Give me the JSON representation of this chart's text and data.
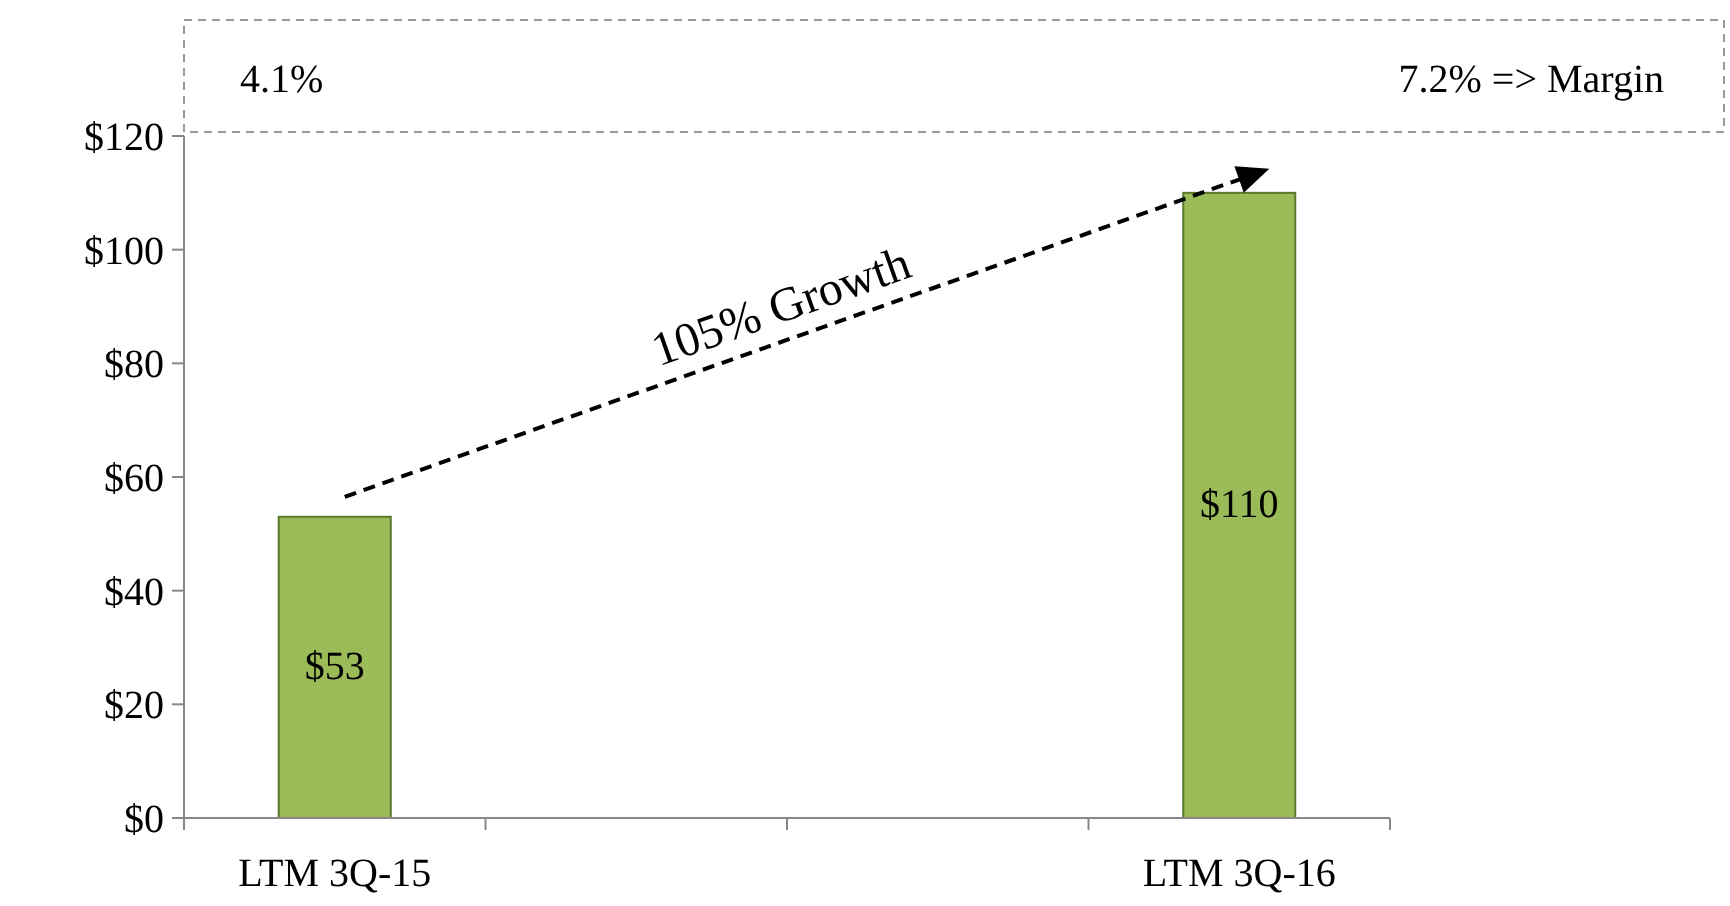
{
  "chart_data": {
    "type": "bar",
    "categories": [
      "LTM 3Q-15",
      null,
      null,
      "LTM 3Q-16"
    ],
    "values": [
      53,
      null,
      null,
      110
    ],
    "value_labels": [
      "$53",
      null,
      null,
      "$110"
    ],
    "color": "#9bbb59",
    "ylim": [
      0,
      120
    ],
    "yticks": [
      {
        "value": 0,
        "label": "$0"
      },
      {
        "value": 20,
        "label": "$20"
      },
      {
        "value": 40,
        "label": "$40"
      },
      {
        "value": 60,
        "label": "$60"
      },
      {
        "value": 80,
        "label": "$80"
      },
      {
        "value": 100,
        "label": "$100"
      },
      {
        "value": 120,
        "label": "$120"
      }
    ],
    "grid": false,
    "annotations": [
      "4.1%",
      "7.2% => Margin",
      "105% Growth"
    ]
  }
}
